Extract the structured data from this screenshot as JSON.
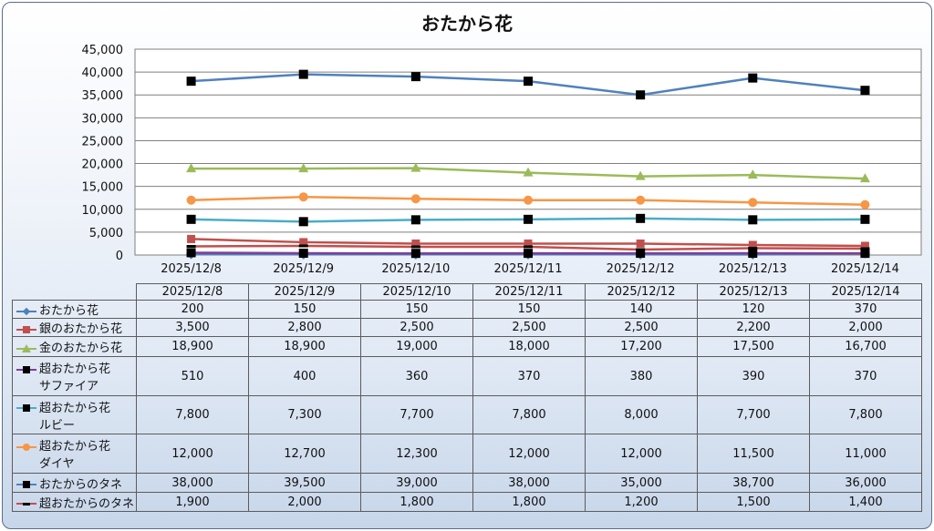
{
  "chart_data": {
    "type": "line",
    "title": "おたから花",
    "categories": [
      "2025/12/8",
      "2025/12/9",
      "2025/12/10",
      "2025/12/11",
      "2025/12/12",
      "2025/12/13",
      "2025/12/14"
    ],
    "ylim": [
      0,
      45000
    ],
    "yticks": [
      "0",
      "5,000",
      "10,000",
      "15,000",
      "20,000",
      "25,000",
      "30,000",
      "35,000",
      "40,000",
      "45,000"
    ],
    "grid": true,
    "legend": "data table below plot",
    "series": [
      {
        "name": "おたから花",
        "line1": "おたから花",
        "line2": "",
        "color": "#4f81bd",
        "marker": "diamond",
        "values": [
          200,
          150,
          150,
          150,
          140,
          120,
          370
        ],
        "labels": [
          "200",
          "150",
          "150",
          "150",
          "140",
          "120",
          "370"
        ]
      },
      {
        "name": "銀のおたから花",
        "line1": "銀のおたから花",
        "line2": "",
        "color": "#c0504d",
        "marker": "square",
        "values": [
          3500,
          2800,
          2500,
          2500,
          2500,
          2200,
          2000
        ],
        "labels": [
          "3,500",
          "2,800",
          "2,500",
          "2,500",
          "2,500",
          "2,200",
          "2,000"
        ]
      },
      {
        "name": "金のおたから花",
        "line1": "金のおたから花",
        "line2": "",
        "color": "#9bbb59",
        "marker": "triangle",
        "values": [
          18900,
          18900,
          19000,
          18000,
          17200,
          17500,
          16700
        ],
        "labels": [
          "18,900",
          "18,900",
          "19,000",
          "18,000",
          "17,200",
          "17,500",
          "16,700"
        ]
      },
      {
        "name": "超おたから花サファイア",
        "line1": "超おたから花",
        "line2": "サファイア",
        "color": "#7f3f98",
        "marker": "blacksquare",
        "values": [
          510,
          400,
          360,
          370,
          380,
          390,
          370
        ],
        "labels": [
          "510",
          "400",
          "360",
          "370",
          "380",
          "390",
          "370"
        ]
      },
      {
        "name": "超おたから花ルビー",
        "line1": "超おたから花",
        "line2": "ルビー",
        "color": "#4bacc6",
        "marker": "blacksquare",
        "values": [
          7800,
          7300,
          7700,
          7800,
          8000,
          7700,
          7800
        ],
        "labels": [
          "7,800",
          "7,300",
          "7,700",
          "7,800",
          "8,000",
          "7,700",
          "7,800"
        ]
      },
      {
        "name": "超おたから花ダイヤ",
        "line1": "超おたから花",
        "line2": "ダイヤ",
        "color": "#f79646",
        "marker": "circle",
        "values": [
          12000,
          12700,
          12300,
          12000,
          12000,
          11500,
          11000
        ],
        "labels": [
          "12,000",
          "12,700",
          "12,300",
          "12,000",
          "12,000",
          "11,500",
          "11,000"
        ]
      },
      {
        "name": "おたからのタネ",
        "line1": "おたからのタネ",
        "line2": "",
        "color": "#4f81bd",
        "marker": "blacksquare",
        "values": [
          38000,
          39500,
          39000,
          38000,
          35000,
          38700,
          36000
        ],
        "labels": [
          "38,000",
          "39,500",
          "39,000",
          "38,000",
          "35,000",
          "38,700",
          "36,000"
        ]
      },
      {
        "name": "超おたからのタネ",
        "line1": "超おたからのタネ",
        "line2": "",
        "color": "#c0504d",
        "marker": "dash",
        "values": [
          1900,
          2000,
          1800,
          1800,
          1200,
          1500,
          1400
        ],
        "labels": [
          "1,900",
          "2,000",
          "1,800",
          "1,800",
          "1,200",
          "1,500",
          "1,400"
        ]
      }
    ]
  }
}
